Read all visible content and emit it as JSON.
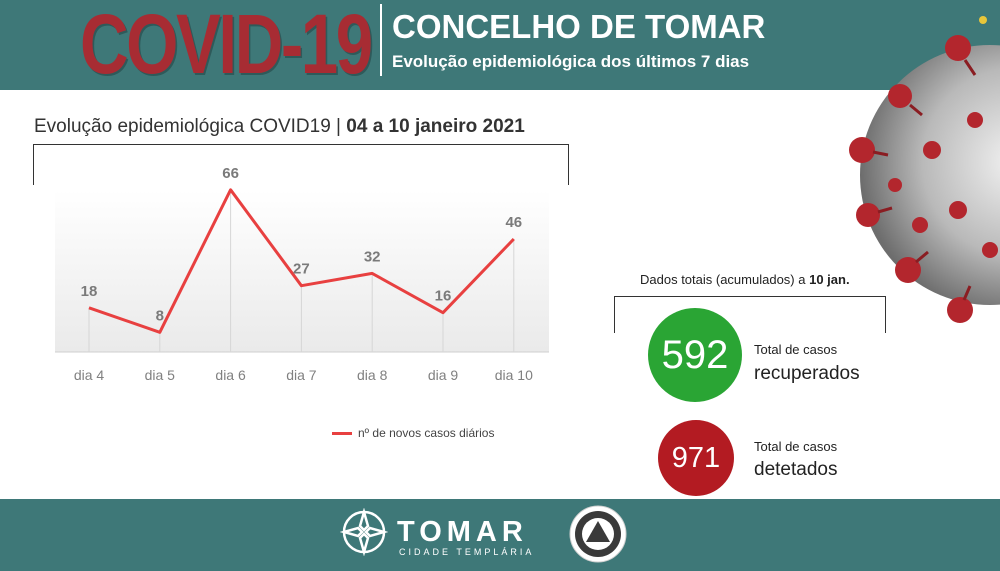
{
  "header": {
    "covid_title": "COVID-19",
    "main_title": "CONCELHO DE TOMAR",
    "subtitle": "Evolução epidemiológica dos últimos 7 dias"
  },
  "chart_section": {
    "title_prefix": "Evolução epidemiológica COVID19 | ",
    "title_dates": "04  a 10  janeiro 2021"
  },
  "chart_data": {
    "type": "line",
    "categories": [
      "dia 4",
      "dia 5",
      "dia 6",
      "dia 7",
      "dia 8",
      "dia 9",
      "dia 10"
    ],
    "series": [
      {
        "name": "nº de novos casos diários",
        "values": [
          18,
          8,
          66,
          27,
          32,
          16,
          46
        ]
      }
    ],
    "title": "Evolução epidemiológica COVID19 | 04  a 10  janeiro 2021",
    "xlabel": "",
    "ylabel": "",
    "ylim": [
      0,
      70
    ],
    "grid": false,
    "legend": "bottom-right",
    "line_color": "#e84040"
  },
  "totals": {
    "title_prefix": "Dados totais (acumulados) a ",
    "title_date": "10 jan.",
    "recovered": {
      "value": "592",
      "label_small": "Total de casos",
      "label_big": "recuperados",
      "color": "#2aa534"
    },
    "detected": {
      "value": "971",
      "label_small": "Total de casos",
      "label_big": "detetados",
      "color": "#b31b22"
    }
  },
  "footer": {
    "brand": "TOMAR",
    "brand_sub": "CIDADE TEMPLÁRIA",
    "emblem_icon": "civil-protection-emblem-icon",
    "logo_icon": "templar-cross-icon"
  },
  "colors": {
    "header_bg": "#3e7878",
    "covid_red": "#a72c33"
  }
}
